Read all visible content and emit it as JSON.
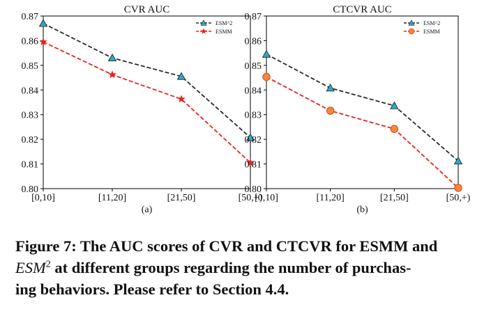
{
  "chart_data": [
    {
      "type": "line",
      "title": "CVR AUC",
      "sublabel": "(a)",
      "categories": [
        "[0,10]",
        "[11,20]",
        "[21,50]",
        "[50,+)"
      ],
      "ylim": [
        0.8,
        0.87
      ],
      "yticks": [
        "0.80",
        "0.81",
        "0.82",
        "0.83",
        "0.84",
        "0.85",
        "0.86",
        "0.87"
      ],
      "grid": false,
      "legend_position": "top-right",
      "series": [
        {
          "name": "ESM^2",
          "values": [
            0.867,
            0.853,
            0.8455,
            0.8207
          ],
          "color": "#2a2a2a",
          "marker": "triangle",
          "marker_color": "#2aa9c9",
          "dash": "dashed"
        },
        {
          "name": "ESMM",
          "values": [
            0.8595,
            0.8462,
            0.8363,
            0.8105
          ],
          "color": "#e8231e",
          "marker": "star",
          "marker_color": "#e8231e",
          "dash": "dashed"
        }
      ]
    },
    {
      "type": "line",
      "title": "CTCVR AUC",
      "sublabel": "(b)",
      "categories": [
        "[0,10]",
        "[11,20]",
        "[21,50]",
        "[50,+)"
      ],
      "ylim": [
        0.8,
        0.87
      ],
      "yticks": [
        "0.80",
        "0.81",
        "0.82",
        "0.83",
        "0.84",
        "0.85",
        "0.86",
        "0.87"
      ],
      "grid": false,
      "legend_position": "top-right",
      "series": [
        {
          "name": "ESM^2",
          "values": [
            0.8545,
            0.8408,
            0.8336,
            0.8112
          ],
          "color": "#2a2a2a",
          "marker": "triangle",
          "marker_color": "#2aa9c9",
          "dash": "dashed"
        },
        {
          "name": "ESMM",
          "values": [
            0.8453,
            0.8316,
            0.8242,
            0.8003
          ],
          "color": "#e8231e",
          "marker": "circle",
          "marker_color": "#f5893a",
          "dash": "dashed"
        }
      ]
    }
  ],
  "caption": {
    "prefix": "Figure 7: The AUC scores of CVR and CTCVR for ESMM and",
    "model_base": "ESM",
    "model_sup": "2",
    "line2_rest": " at different groups regarding the number of purchas-",
    "line3": "ing behaviors. Please refer to Section 4.4."
  }
}
